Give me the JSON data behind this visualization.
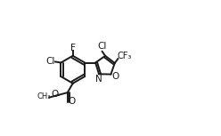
{
  "background": "#ffffff",
  "line_color": "#1a1a1a",
  "line_width": 1.4,
  "font_size": 7.5,
  "figure_size": [
    2.48,
    1.53
  ],
  "dpi": 100,
  "xlim": [
    0.8,
    7.8
  ],
  "ylim": [
    1.0,
    4.8
  ]
}
